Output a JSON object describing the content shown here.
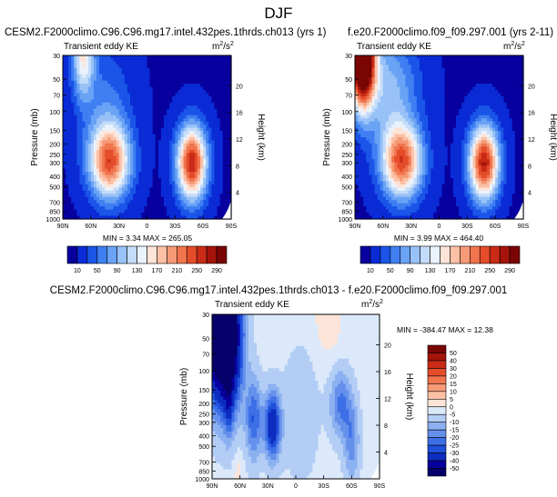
{
  "figure_title": "DJF",
  "chart_data": [
    {
      "type": "heatmap",
      "title": "CESM2.F2000climo.C96.C96.mg17.intel.432pes.1thrds.ch013 (yrs 1)",
      "subtitle": "Transient eddy KE",
      "units": "m²/s²",
      "units_base": "m",
      "units_sup1": "2",
      "units_sep": "/s",
      "units_sup2": "2",
      "ylabel": "Pressure (mb)",
      "y2label": "Height (km)",
      "xticks": [
        "90N",
        "60N",
        "30N",
        "0",
        "30S",
        "60S",
        "90S"
      ],
      "xvals": [
        90,
        60,
        30,
        0,
        -30,
        -60,
        -90
      ],
      "yticks": [
        "30",
        "50",
        "70",
        "100",
        "150",
        "200",
        "250",
        "300",
        "400",
        "500",
        "700",
        "850",
        "1000"
      ],
      "yvals": [
        30,
        50,
        70,
        100,
        150,
        200,
        250,
        300,
        400,
        500,
        700,
        850,
        1000
      ],
      "y2ticks": [
        "20",
        "16",
        "12",
        "8",
        "4"
      ],
      "y2vals": [
        20,
        16,
        12,
        8,
        4
      ],
      "ylim": [
        1000,
        30
      ],
      "xlim": [
        90,
        -90
      ],
      "stats_text": "MIN =   3.34  MAX = 265.05",
      "min": 3.34,
      "max": 265.05,
      "features": [
        {
          "lat": 40,
          "p": 290,
          "amp": 230,
          "slat": 15,
          "sp": 0.55
        },
        {
          "lat": -48,
          "p": 300,
          "amp": 262,
          "slat": 11,
          "sp": 0.55
        },
        {
          "lat": 68,
          "p": 30,
          "amp": 140,
          "slat": 8,
          "sp": 0.6
        },
        {
          "lat": 45,
          "p": 80,
          "amp": 45,
          "slat": 20,
          "sp": 0.8
        }
      ],
      "base": 8,
      "colorbar": {
        "labels": [
          "10",
          "50",
          "90",
          "130",
          "170",
          "210",
          "250",
          "290"
        ],
        "levels": [
          10,
          30,
          50,
          70,
          90,
          110,
          130,
          150,
          170,
          190,
          210,
          230,
          250,
          270,
          290
        ],
        "colors": [
          "#08009e",
          "#0a2bd6",
          "#1a55e8",
          "#3f7ff2",
          "#6aa2f5",
          "#98c2f7",
          "#c4dcf9",
          "#eaf2fb",
          "#fde4d8",
          "#fbc0a6",
          "#f69a77",
          "#f0744d",
          "#e44c2a",
          "#c92b16",
          "#a4140a",
          "#7a0604"
        ]
      }
    },
    {
      "type": "heatmap",
      "title": "f.e20.F2000climo.f09_f09.297.001 (yrs 2-11)",
      "subtitle": "Transient eddy KE",
      "units": "m²/s²",
      "units_base": "m",
      "units_sup1": "2",
      "units_sep": "/s",
      "units_sup2": "2",
      "ylabel": "Pressure (mb)",
      "y2label": "Height (km)",
      "xticks": [
        "90N",
        "60N",
        "30N",
        "0",
        "30S",
        "60S",
        "90S"
      ],
      "xvals": [
        90,
        60,
        30,
        0,
        -30,
        -60,
        -90
      ],
      "yticks": [
        "30",
        "50",
        "70",
        "100",
        "150",
        "200",
        "250",
        "300",
        "400",
        "500",
        "700",
        "850",
        "1000"
      ],
      "yvals": [
        30,
        50,
        70,
        100,
        150,
        200,
        250,
        300,
        400,
        500,
        700,
        850,
        1000
      ],
      "y2ticks": [
        "20",
        "16",
        "12",
        "8",
        "4"
      ],
      "y2vals": [
        20,
        16,
        12,
        8,
        4
      ],
      "ylim": [
        1000,
        30
      ],
      "xlim": [
        90,
        -90
      ],
      "stats_text": "MIN =   3.99  MAX = 464.40",
      "min": 3.99,
      "max": 464.4,
      "features": [
        {
          "lat": 40,
          "p": 290,
          "amp": 232,
          "slat": 15,
          "sp": 0.55
        },
        {
          "lat": -48,
          "p": 300,
          "amp": 265,
          "slat": 11,
          "sp": 0.55
        },
        {
          "lat": 82,
          "p": 30,
          "amp": 440,
          "slat": 9,
          "sp": 0.7
        },
        {
          "lat": 55,
          "p": 60,
          "amp": 90,
          "slat": 22,
          "sp": 0.8
        }
      ],
      "base": 8,
      "colorbar": {
        "labels": [
          "10",
          "50",
          "90",
          "130",
          "170",
          "210",
          "250",
          "290"
        ],
        "levels": [
          10,
          30,
          50,
          70,
          90,
          110,
          130,
          150,
          170,
          190,
          210,
          230,
          250,
          270,
          290
        ],
        "colors": [
          "#08009e",
          "#0a2bd6",
          "#1a55e8",
          "#3f7ff2",
          "#6aa2f5",
          "#98c2f7",
          "#c4dcf9",
          "#eaf2fb",
          "#fde4d8",
          "#fbc0a6",
          "#f69a77",
          "#f0744d",
          "#e44c2a",
          "#c92b16",
          "#a4140a",
          "#7a0604"
        ]
      }
    },
    {
      "type": "heatmap",
      "title": "CESM2.F2000climo.C96.C96.mg17.intel.432pes.1thrds.ch013 - f.e20.F2000climo.f09_f09.297.001",
      "subtitle": "Transient eddy KE",
      "units": "m²/s²",
      "units_base": "m",
      "units_sup1": "2",
      "units_sep": "/s",
      "units_sup2": "2",
      "ylabel": "Pressure (mb)",
      "y2label": "Height (km)",
      "xticks": [
        "90N",
        "60N",
        "30N",
        "0",
        "30S",
        "60S",
        "90S"
      ],
      "xvals": [
        90,
        60,
        30,
        0,
        -30,
        -60,
        -90
      ],
      "yticks": [
        "30",
        "50",
        "70",
        "100",
        "150",
        "200",
        "250",
        "300",
        "400",
        "500",
        "700",
        "850",
        "1000"
      ],
      "yvals": [
        30,
        50,
        70,
        100,
        150,
        200,
        250,
        300,
        400,
        500,
        700,
        850,
        1000
      ],
      "y2ticks": [
        "20",
        "16",
        "12",
        "8",
        "4"
      ],
      "y2vals": [
        20,
        16,
        12,
        8,
        4
      ],
      "ylim": [
        1000,
        30
      ],
      "xlim": [
        90,
        -90
      ],
      "stats_text": "MIN = -384.47  MAX =  12.38",
      "min": -384.47,
      "max": 12.38,
      "features": [
        {
          "lat": 85,
          "p": 30,
          "amp": -70,
          "slat": 14,
          "sp": 1.1
        },
        {
          "lat": 72,
          "p": 60,
          "amp": -40,
          "slat": 10,
          "sp": 1.0
        },
        {
          "lat": 25,
          "p": 320,
          "amp": -35,
          "slat": 6,
          "sp": 0.5
        },
        {
          "lat": 45,
          "p": 280,
          "amp": -22,
          "slat": 6,
          "sp": 0.6
        },
        {
          "lat": -48,
          "p": 200,
          "amp": -18,
          "slat": 8,
          "sp": 0.5
        },
        {
          "lat": -60,
          "p": 450,
          "amp": -15,
          "slat": 6,
          "sp": 0.6
        },
        {
          "lat": -35,
          "p": 30,
          "amp": 8,
          "slat": 10,
          "sp": 0.6
        },
        {
          "lat": -5,
          "p": 250,
          "amp": -6,
          "slat": 14,
          "sp": 1.0
        },
        {
          "lat": 62,
          "p": 900,
          "amp": 6,
          "slat": 3,
          "sp": 0.3
        },
        {
          "lat": 72,
          "p": 200,
          "amp": -12,
          "slat": 3,
          "sp": 0.5
        }
      ],
      "base": -3,
      "colorbar": {
        "labels": [
          "50",
          "40",
          "30",
          "20",
          "15",
          "10",
          "5",
          "0",
          "-5",
          "-10",
          "-15",
          "-20",
          "-25",
          "-30",
          "-40",
          "-50"
        ],
        "levels": [
          50,
          40,
          30,
          20,
          15,
          10,
          5,
          0,
          -5,
          -10,
          -15,
          -20,
          -25,
          -30,
          -40,
          -50
        ],
        "colors": [
          "#7a0604",
          "#a4140a",
          "#c92b16",
          "#e44c2a",
          "#f0744d",
          "#f69a77",
          "#fbc0a6",
          "#fde4d8",
          "#dce9fa",
          "#b3cdf5",
          "#8cb1f1",
          "#6590ec",
          "#3d6fe6",
          "#1f50dc",
          "#0c2dbf",
          "#08009e",
          "#06006a"
        ]
      }
    }
  ]
}
